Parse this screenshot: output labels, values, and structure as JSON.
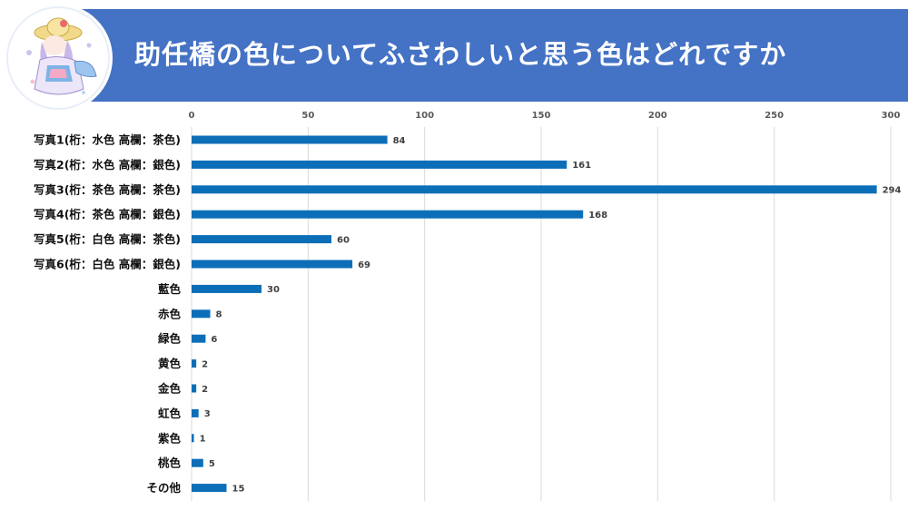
{
  "header": {
    "title": "助任橋の色についてふさわしいと思う色はどれですか",
    "banner_color": "#4472c4",
    "logo_icon": "mascot-character-illustration"
  },
  "chart_data": {
    "type": "bar",
    "orientation": "horizontal",
    "title": "助任橋の色についてふさわしいと思う色はどれですか",
    "xlabel": "",
    "ylabel": "",
    "xlim": [
      0,
      300
    ],
    "xticks": [
      0,
      50,
      100,
      150,
      200,
      250,
      300
    ],
    "grid": true,
    "legend": "none",
    "bar_color": "#0d6eb8",
    "categories": [
      "写真1(桁：水色 高欄：茶色)",
      "写真2(桁：水色 高欄：銀色)",
      "写真3(桁：茶色 高欄：茶色)",
      "写真4(桁：茶色 高欄：銀色)",
      "写真5(桁：白色 高欄：茶色)",
      "写真6(桁：白色 高欄：銀色)",
      "藍色",
      "赤色",
      "緑色",
      "黄色",
      "金色",
      "虹色",
      "紫色",
      "桃色",
      "その他"
    ],
    "values": [
      84,
      161,
      294,
      168,
      60,
      69,
      30,
      8,
      6,
      2,
      2,
      3,
      1,
      5,
      15
    ]
  }
}
